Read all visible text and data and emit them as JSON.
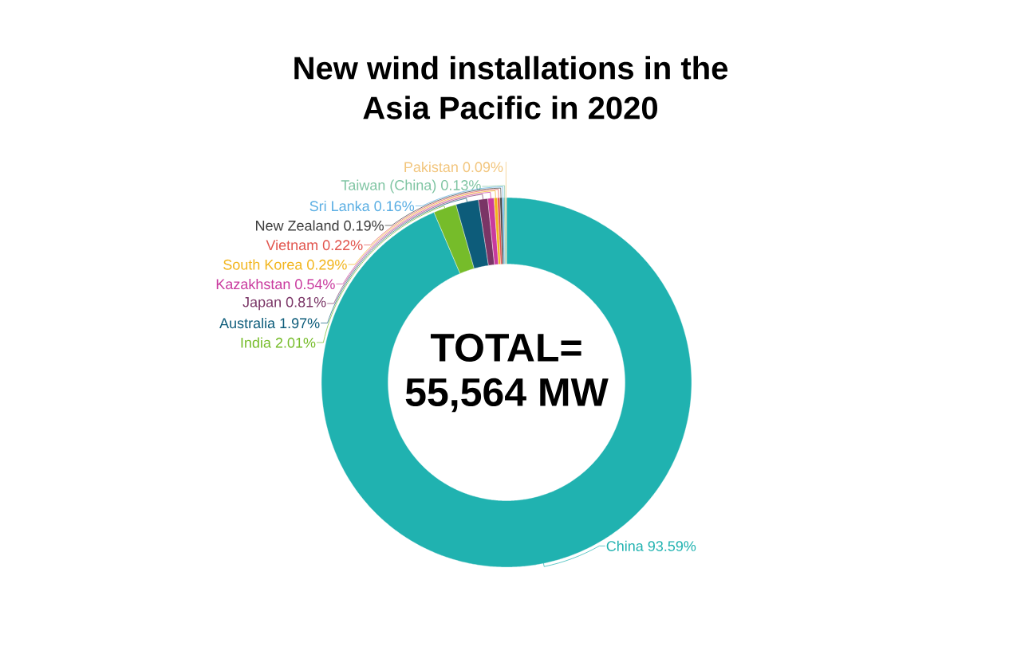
{
  "chart_data": {
    "type": "donut",
    "title": "New wind installations in the Asia Pacific in 2020",
    "categories": [
      "China",
      "India",
      "Australia",
      "Japan",
      "Kazakhstan",
      "South Korea",
      "Vietnam",
      "New Zealand",
      "Sri Lanka",
      "Taiwan (China)",
      "Pakistan"
    ],
    "values": [
      93.59,
      2.01,
      1.97,
      0.81,
      0.54,
      0.29,
      0.22,
      0.19,
      0.16,
      0.13,
      0.09
    ],
    "value_labels": [
      "93.59%",
      "2.01%",
      "1.97%",
      "0.81%",
      "0.54%",
      "0.29%",
      "0.22%",
      "0.19%",
      "0.16%",
      "0.13%",
      "0.09%"
    ],
    "colors": [
      "#20b2b0",
      "#76bc2a",
      "#0d5c7a",
      "#7a3566",
      "#c93a9e",
      "#f2b51d",
      "#e2554e",
      "#3d3d3d",
      "#5aaee3",
      "#7ec4a2",
      "#f2c57c"
    ],
    "annotations": [
      "TOTAL= 55,564 MW"
    ]
  }
}
